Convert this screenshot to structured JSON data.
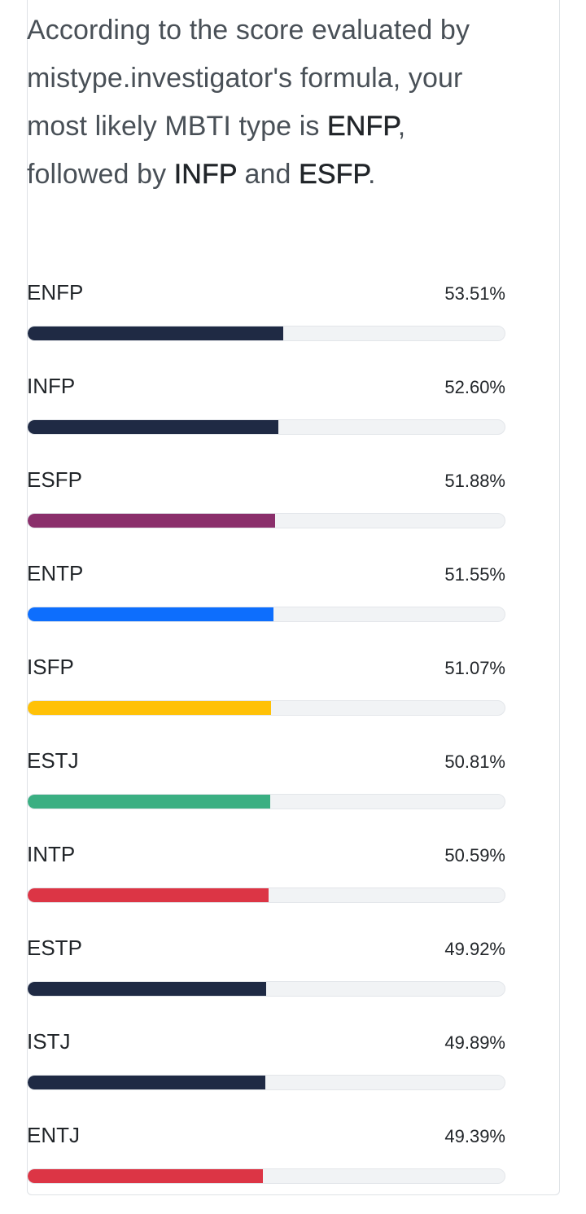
{
  "summary": {
    "part1": "According to the score evaluated by mistype.investigator's formula, your most likely MBTI type is ",
    "top1": "ENFP",
    "part2": ", followed by ",
    "top2": "INFP",
    "part3": " and ",
    "top3": "ESFP",
    "part4": "."
  },
  "results": [
    {
      "type": "ENFP",
      "percent_label": "53.51%",
      "value": 53.51,
      "color": "#1f2a44"
    },
    {
      "type": "INFP",
      "percent_label": "52.60%",
      "value": 52.6,
      "color": "#1f2a44"
    },
    {
      "type": "ESFP",
      "percent_label": "51.88%",
      "value": 51.88,
      "color": "#8a2f6b"
    },
    {
      "type": "ENTP",
      "percent_label": "51.55%",
      "value": 51.55,
      "color": "#0d6efd"
    },
    {
      "type": "ISFP",
      "percent_label": "51.07%",
      "value": 51.07,
      "color": "#ffc107"
    },
    {
      "type": "ESTJ",
      "percent_label": "50.81%",
      "value": 50.81,
      "color": "#3aaf82"
    },
    {
      "type": "INTP",
      "percent_label": "50.59%",
      "value": 50.59,
      "color": "#dc3545"
    },
    {
      "type": "ESTP",
      "percent_label": "49.92%",
      "value": 49.92,
      "color": "#1f2a44"
    },
    {
      "type": "ISTJ",
      "percent_label": "49.89%",
      "value": 49.89,
      "color": "#1f2a44"
    },
    {
      "type": "ENTJ",
      "percent_label": "49.39%",
      "value": 49.39,
      "color": "#dc3545"
    }
  ]
}
